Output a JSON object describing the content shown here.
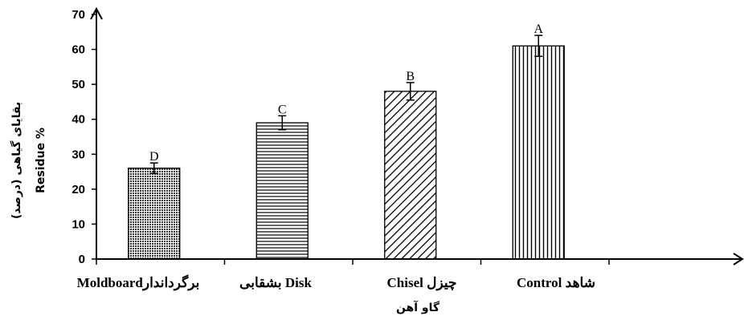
{
  "chart_data": {
    "type": "bar",
    "categories": [
      "Moldboardبرگرداندار",
      "بشقابی  Disk",
      "Chisel  چیزل",
      "Control  شاهد"
    ],
    "values": [
      26,
      39,
      48,
      61
    ],
    "error": [
      1.5,
      2,
      2.5,
      3
    ],
    "significance": [
      "D",
      "C",
      "B",
      "A"
    ],
    "patterns": [
      "dots",
      "horizontal",
      "diagonal",
      "vertical"
    ],
    "xlabel": "گاو آهن",
    "ylabel_fa": "بقایای گیاهی (درصد)",
    "ylabel_en": "Residue %",
    "ylim": [
      0,
      70
    ],
    "yticks": [
      0,
      10,
      20,
      30,
      40,
      50,
      60,
      70
    ],
    "grid": false,
    "legend": "none",
    "bar_color": "#000000",
    "background": "#ffffff"
  }
}
